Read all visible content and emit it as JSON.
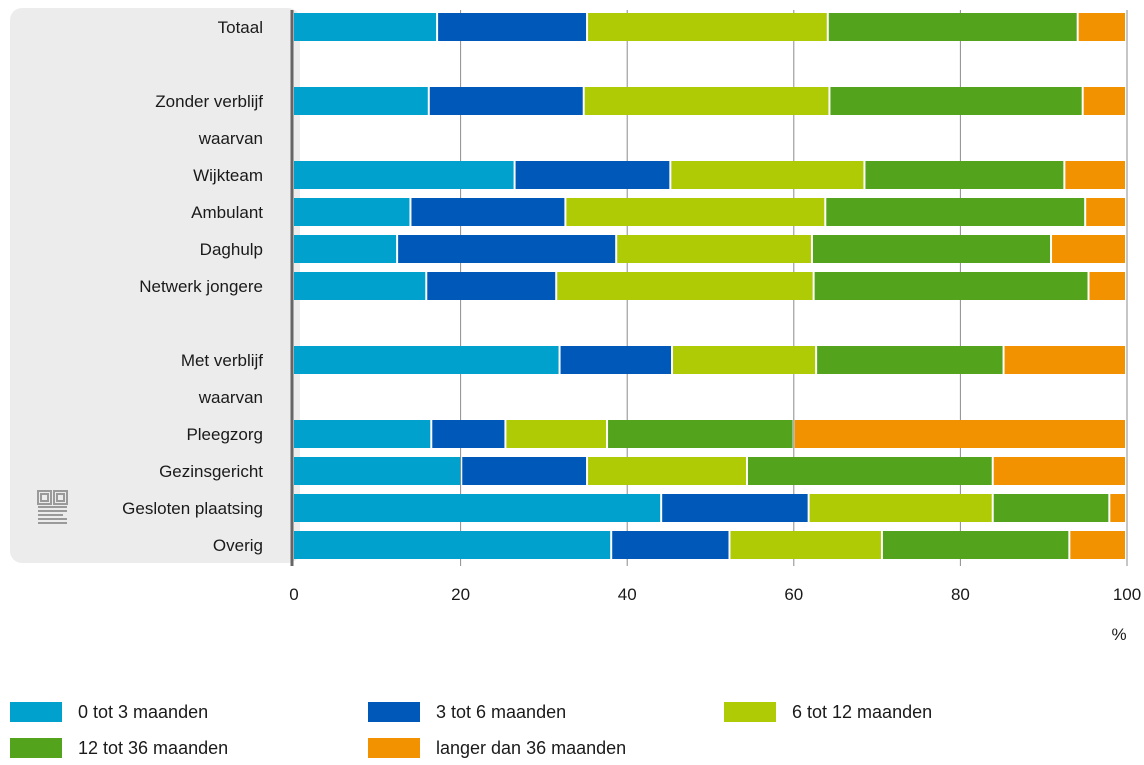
{
  "chart_data": {
    "type": "bar",
    "orientation": "horizontal",
    "stacked": true,
    "categories": [
      "Totaal",
      "",
      "Zonder verblijf",
      "waarvan",
      "Wijkteam",
      "Ambulant",
      "Daghulp",
      "Netwerk jongere",
      "",
      "Met verblijf",
      "waarvan",
      "Pleegzorg",
      "Gezinsgericht",
      "Gesloten plaatsing",
      "Overig"
    ],
    "series": [
      {
        "name": "0 tot 3 maanden",
        "color": "#00a1cd",
        "values": [
          17.3,
          null,
          16.3,
          null,
          26.6,
          14.1,
          12.5,
          16.0,
          null,
          32.0,
          null,
          16.6,
          20.2,
          44.2,
          38.2
        ]
      },
      {
        "name": "3 tot 6 maanden",
        "color": "#0058b8",
        "values": [
          18.0,
          null,
          18.6,
          null,
          18.7,
          18.6,
          26.3,
          15.6,
          null,
          13.5,
          null,
          8.9,
          15.1,
          17.7,
          14.2
        ]
      },
      {
        "name": "6 tot 12 maanden",
        "color": "#afcb05",
        "values": [
          28.9,
          null,
          29.5,
          null,
          23.3,
          31.2,
          23.5,
          30.9,
          null,
          17.3,
          null,
          12.2,
          19.2,
          22.1,
          18.3
        ]
      },
      {
        "name": "12 tot 36 maanden",
        "color": "#53a31d",
        "values": [
          30.0,
          null,
          30.4,
          null,
          24.0,
          31.2,
          28.7,
          33.0,
          null,
          22.5,
          null,
          22.4,
          29.5,
          14.0,
          22.5
        ]
      },
      {
        "name": "langer dan 36 maanden",
        "color": "#f39200",
        "values": [
          5.8,
          null,
          5.2,
          null,
          7.4,
          4.9,
          9.0,
          4.5,
          null,
          14.7,
          null,
          39.9,
          16.0,
          2.0,
          6.8
        ]
      }
    ],
    "x_ticks": [
      "0",
      "20",
      "40",
      "60",
      "80",
      "100"
    ],
    "xlim": [
      0,
      100
    ],
    "xlabel": "%",
    "grid": true,
    "legend_position": "bottom"
  }
}
